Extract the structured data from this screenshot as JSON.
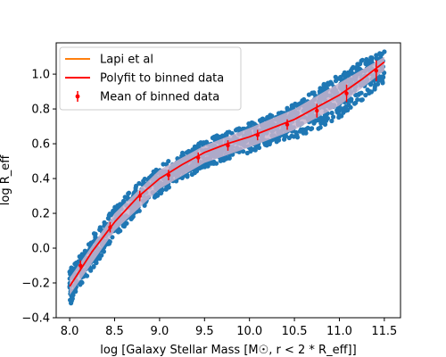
{
  "chart_data": {
    "type": "scatter",
    "xlabel": "log [Galaxy Stellar Mass [M☉, r < 2 * R_eff]]",
    "ylabel": "log R_eff",
    "xlim": [
      7.85,
      11.68
    ],
    "ylim": [
      -0.4,
      1.18
    ],
    "x_ticks": [
      8.0,
      8.5,
      9.0,
      9.5,
      10.0,
      10.5,
      11.0,
      11.5
    ],
    "x_tick_labels": [
      "8.0",
      "8.5",
      "9.0",
      "9.5",
      "10.0",
      "10.5",
      "11.0",
      "11.5"
    ],
    "y_ticks": [
      -0.4,
      -0.2,
      0.0,
      0.2,
      0.4,
      0.6,
      0.8,
      1.0
    ],
    "y_tick_labels": [
      "−0.4",
      "−0.2",
      "0.0",
      "0.2",
      "0.4",
      "0.6",
      "0.8",
      "1.0"
    ],
    "grid": false,
    "legend_position": "top-left",
    "legend": [
      {
        "label": "Lapi et al",
        "kind": "line",
        "color": "#ff7f0e"
      },
      {
        "label": "Polyfit to binned data",
        "kind": "line",
        "color": "#ff0000"
      },
      {
        "label": "Mean of binned data",
        "kind": "errorbar",
        "color": "#ff0000"
      }
    ],
    "scatter_color": "#1f77b4",
    "band_color": "#c7b3cc",
    "series": [
      {
        "name": "Polyfit to binned data",
        "kind": "line",
        "color": "#ff0000",
        "x": [
          8.0,
          8.25,
          8.5,
          8.75,
          9.0,
          9.25,
          9.5,
          9.75,
          10.0,
          10.25,
          10.5,
          10.75,
          11.0,
          11.25,
          11.5
        ],
        "y": [
          -0.22,
          -0.02,
          0.15,
          0.29,
          0.4,
          0.48,
          0.55,
          0.6,
          0.64,
          0.69,
          0.74,
          0.81,
          0.88,
          0.97,
          1.07
        ]
      },
      {
        "name": "Mean of binned data",
        "kind": "errorbar",
        "color": "#ff0000",
        "x": [
          8.12,
          8.45,
          8.78,
          9.1,
          9.43,
          9.76,
          10.09,
          10.42,
          10.75,
          11.08,
          11.41
        ],
        "y": [
          -0.1,
          0.12,
          0.3,
          0.42,
          0.52,
          0.59,
          0.65,
          0.71,
          0.79,
          0.89,
          1.02
        ],
        "err": [
          0.03,
          0.03,
          0.03,
          0.03,
          0.03,
          0.03,
          0.03,
          0.03,
          0.04,
          0.05,
          0.06
        ]
      },
      {
        "name": "Spread band",
        "kind": "band",
        "x": [
          8.0,
          8.5,
          9.0,
          9.5,
          10.0,
          10.5,
          11.0,
          11.5
        ],
        "lower": [
          -0.27,
          0.1,
          0.34,
          0.49,
          0.58,
          0.68,
          0.82,
          1.02
        ],
        "upper": [
          -0.17,
          0.2,
          0.45,
          0.59,
          0.69,
          0.8,
          0.95,
          1.1
        ]
      },
      {
        "name": "Galaxies",
        "kind": "scatter_envelope",
        "x": [
          8.0,
          8.25,
          8.5,
          8.75,
          9.0,
          9.25,
          9.5,
          9.75,
          10.0,
          10.25,
          10.5,
          10.75,
          11.0,
          11.25,
          11.5
        ],
        "lower": [
          -0.33,
          -0.12,
          0.06,
          0.2,
          0.31,
          0.39,
          0.46,
          0.51,
          0.55,
          0.6,
          0.63,
          0.68,
          0.75,
          0.85,
          0.95
        ],
        "upper": [
          -0.12,
          0.07,
          0.24,
          0.37,
          0.47,
          0.55,
          0.62,
          0.67,
          0.72,
          0.77,
          0.83,
          0.92,
          1.0,
          1.08,
          1.13
        ]
      }
    ]
  }
}
